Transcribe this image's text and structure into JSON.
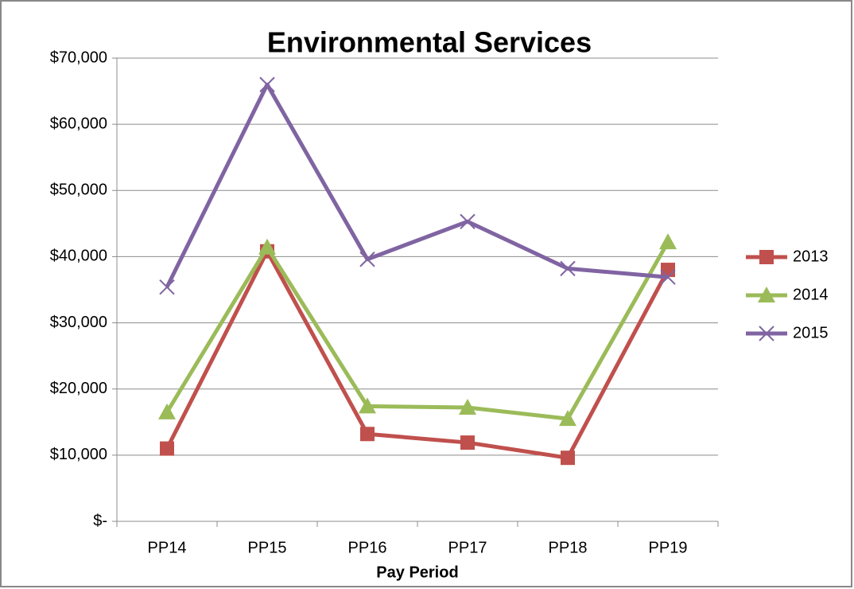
{
  "chart_data": {
    "type": "line",
    "title": "Environmental Services",
    "x_label": "Pay Period",
    "categories": [
      "PP14",
      "PP15",
      "PP16",
      "PP17",
      "PP18",
      "PP19"
    ],
    "series": [
      {
        "name": "2013",
        "color": "#c0504d",
        "marker": "square",
        "values": [
          11000,
          40800,
          13200,
          11900,
          9600,
          38000
        ]
      },
      {
        "name": "2014",
        "color": "#9bbb59",
        "marker": "triangle",
        "values": [
          16500,
          41400,
          17400,
          17200,
          15500,
          42200
        ]
      },
      {
        "name": "2015",
        "color": "#8064a2",
        "marker": "x",
        "values": [
          35400,
          66000,
          39600,
          45300,
          38200,
          36900
        ]
      }
    ],
    "ylim": [
      0,
      70000
    ],
    "yticks": [
      {
        "value": 0,
        "label": "$-"
      },
      {
        "value": 10000,
        "label": "$10,000"
      },
      {
        "value": 20000,
        "label": "$20,000"
      },
      {
        "value": 30000,
        "label": "$30,000"
      },
      {
        "value": 40000,
        "label": "$40,000"
      },
      {
        "value": 50000,
        "label": "$50,000"
      },
      {
        "value": 60000,
        "label": "$60,000"
      },
      {
        "value": 70000,
        "label": "$70,000"
      }
    ],
    "grid": true,
    "legend": "right"
  }
}
